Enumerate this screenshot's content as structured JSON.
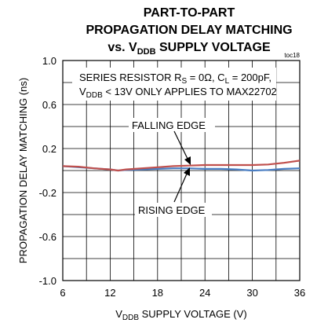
{
  "chart_data": {
    "type": "line",
    "title_lines": [
      "PART-TO-PART",
      "PROPAGATION DELAY MATCHING"
    ],
    "title_line3": {
      "prefix": "vs. V",
      "sub": "DDB",
      "suffix": " SUPPLY VOLTAGE"
    },
    "figure_tag": "toc18",
    "xlabel": {
      "prefix": "V",
      "sub": "DDB",
      "suffix": " SUPPLY VOLTAGE (V)"
    },
    "ylabel": "PROPAGATION DELAY MATCHING (ns)",
    "xlim": [
      6,
      36
    ],
    "ylim": [
      -1.0,
      1.0
    ],
    "x_ticks": [
      "6",
      "12",
      "18",
      "24",
      "30",
      "36"
    ],
    "y_ticks": [
      "1.0",
      "0.6",
      "0.2",
      "-0.2",
      "-0.6",
      "-1.0"
    ],
    "grid": true,
    "note": {
      "line1": {
        "text1": "SERIES RESISTOR R",
        "sub1": "S",
        "text2": " = 0Ω, C",
        "sub2": "L",
        "text3": " = 200pF,"
      },
      "line2": {
        "prefix": "V",
        "sub": "DDB",
        "suffix": " < 13V ONLY APPLIES TO MAX22702"
      }
    },
    "series": [
      {
        "name": "FALLING EDGE",
        "color": "#c0504d",
        "x": [
          6,
          8,
          10,
          12,
          13,
          14,
          16,
          18,
          20,
          22,
          24,
          26,
          28,
          30,
          32,
          34,
          36
        ],
        "y": [
          0.04,
          0.035,
          0.02,
          0.01,
          0.0,
          0.01,
          0.02,
          0.03,
          0.04,
          0.045,
          0.05,
          0.05,
          0.05,
          0.05,
          0.055,
          0.07,
          0.09
        ]
      },
      {
        "name": "RISING EDGE",
        "color": "#4a7ec3",
        "x": [
          6,
          8,
          10,
          12,
          13,
          14,
          16,
          18,
          20,
          22,
          24,
          26,
          28,
          30,
          32,
          34,
          36
        ],
        "y": [
          0.04,
          0.03,
          0.02,
          0.01,
          0.0,
          0.005,
          0.01,
          0.015,
          0.02,
          0.02,
          0.015,
          0.015,
          0.01,
          0.0,
          0.005,
          0.015,
          0.02
        ]
      }
    ]
  }
}
